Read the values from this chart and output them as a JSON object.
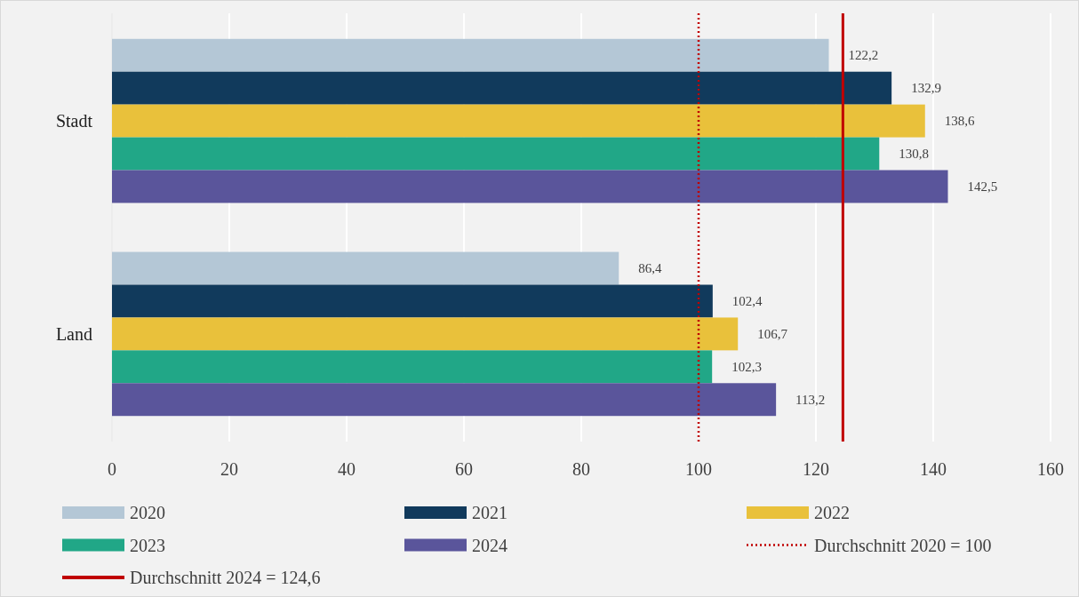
{
  "chart_data": {
    "type": "bar",
    "orientation": "horizontal",
    "categories": [
      "Stadt",
      "Land"
    ],
    "series": [
      {
        "name": "2020",
        "color": "#b4c7d6",
        "values": [
          122.2,
          86.4
        ],
        "value_labels": [
          "122,2",
          "86,4"
        ]
      },
      {
        "name": "2021",
        "color": "#113a5c",
        "values": [
          132.9,
          102.4
        ],
        "value_labels": [
          "132,9",
          "102,4"
        ]
      },
      {
        "name": "2022",
        "color": "#e9c13b",
        "values": [
          138.6,
          106.7
        ],
        "value_labels": [
          "138,6",
          "106,7"
        ]
      },
      {
        "name": "2023",
        "color": "#21a787",
        "values": [
          130.8,
          102.3
        ],
        "value_labels": [
          "130,8",
          "102,3"
        ]
      },
      {
        "name": "2024",
        "color": "#5a559b",
        "values": [
          142.5,
          113.2
        ],
        "value_labels": [
          "142,5",
          "113,2"
        ]
      }
    ],
    "xlim": [
      0,
      160
    ],
    "xticks": [
      0,
      20,
      40,
      60,
      80,
      100,
      120,
      140,
      160
    ],
    "grid": "x",
    "legend": "bottom",
    "ref_lines": [
      {
        "axis": "x",
        "value": 100,
        "label": "Durchschnitt 2020 = 100",
        "color": "#c00000",
        "line_style": "dotted"
      },
      {
        "axis": "x",
        "value": 124.6,
        "label": "Durchschnitt 2024 = 124,6",
        "color": "#c00000",
        "line_style": "solid"
      }
    ]
  }
}
